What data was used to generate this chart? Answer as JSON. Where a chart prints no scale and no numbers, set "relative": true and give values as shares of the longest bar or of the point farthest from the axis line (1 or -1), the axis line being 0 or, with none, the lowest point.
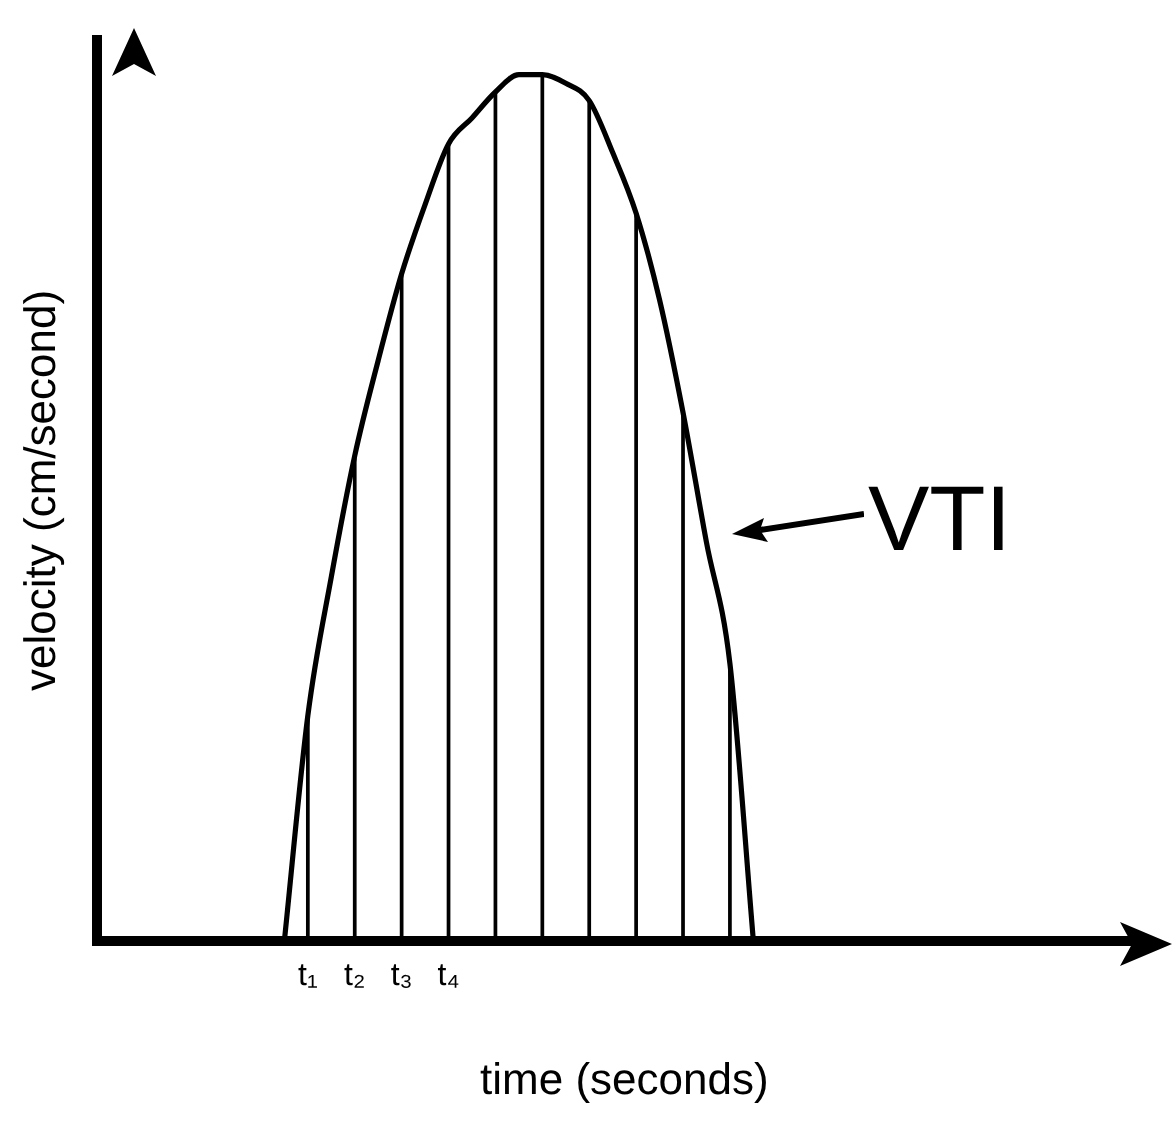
{
  "chart_data": {
    "type": "line",
    "relative": true,
    "xlabel": "time (seconds)",
    "ylabel": "velocity (cm/second)",
    "annotations": [
      "VTI"
    ],
    "grid": false,
    "legend": false,
    "tick_labels": "x",
    "marker": "none",
    "line_style": "solid",
    "categories": [
      null,
      null,
      null,
      null,
      null,
      null,
      null,
      null,
      null,
      "t₁",
      null,
      "t₂",
      null,
      "t₃",
      null,
      "t₄",
      null,
      null,
      null,
      null,
      null,
      null,
      null,
      null,
      null,
      null,
      null,
      null,
      null,
      null,
      null,
      null,
      null,
      null,
      null,
      null,
      null,
      null,
      null,
      null,
      null,
      null,
      null,
      null,
      null,
      null
    ],
    "series": [
      {
        "color": "#000000",
        "values": [
          null,
          null,
          null,
          null,
          null,
          null,
          null,
          null,
          0,
          0.26,
          0.42,
          0.56,
          0.67,
          0.77,
          0.85,
          0.92,
          0.95,
          0.98,
          1.0,
          1.0,
          0.99,
          0.97,
          0.91,
          0.84,
          0.74,
          0.61,
          0.46,
          0.32,
          0,
          null,
          null,
          null,
          null,
          null,
          null,
          null,
          null,
          null,
          null,
          null,
          null,
          null,
          null,
          null,
          null,
          null
        ]
      },
      {
        "type": "bar",
        "color": "#000000",
        "values": [
          null,
          null,
          null,
          null,
          null,
          null,
          null,
          null,
          null,
          0.26,
          null,
          0.56,
          null,
          0.77,
          null,
          0.92,
          null,
          0.98,
          null,
          1.0,
          null,
          0.97,
          null,
          0.84,
          null,
          0.61,
          null,
          0.32,
          null,
          null,
          null,
          null,
          null,
          null,
          null,
          null,
          null,
          null,
          null,
          null,
          null,
          null,
          null,
          null,
          null,
          null
        ]
      }
    ]
  }
}
